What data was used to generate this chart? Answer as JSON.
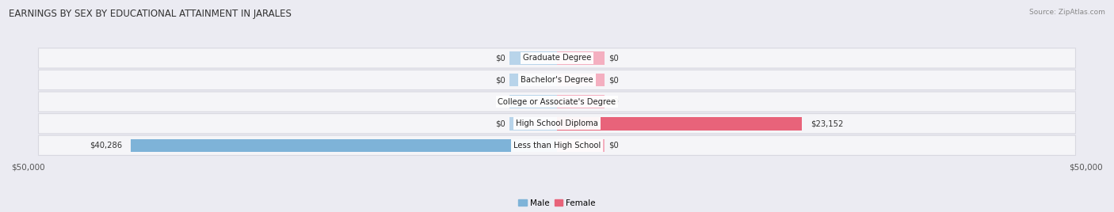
{
  "title": "EARNINGS BY SEX BY EDUCATIONAL ATTAINMENT IN JARALES",
  "source": "Source: ZipAtlas.com",
  "categories": [
    "Less than High School",
    "High School Diploma",
    "College or Associate's Degree",
    "Bachelor's Degree",
    "Graduate Degree"
  ],
  "male_values": [
    40286,
    0,
    0,
    0,
    0
  ],
  "female_values": [
    0,
    23152,
    0,
    0,
    0
  ],
  "male_color": "#7eb3d8",
  "female_color": "#e8637a",
  "male_stub_color": "#b8d4ea",
  "female_stub_color": "#f4afc0",
  "max_value": 50000,
  "stub_value": 4500,
  "bg_color": "#ebebf2",
  "row_bg_color": "#f5f5f8",
  "row_border_color": "#d8d8e0",
  "title_fontsize": 8.5,
  "label_fontsize": 7.2,
  "tick_fontsize": 7.5,
  "legend_fontsize": 7.5,
  "source_fontsize": 6.5
}
